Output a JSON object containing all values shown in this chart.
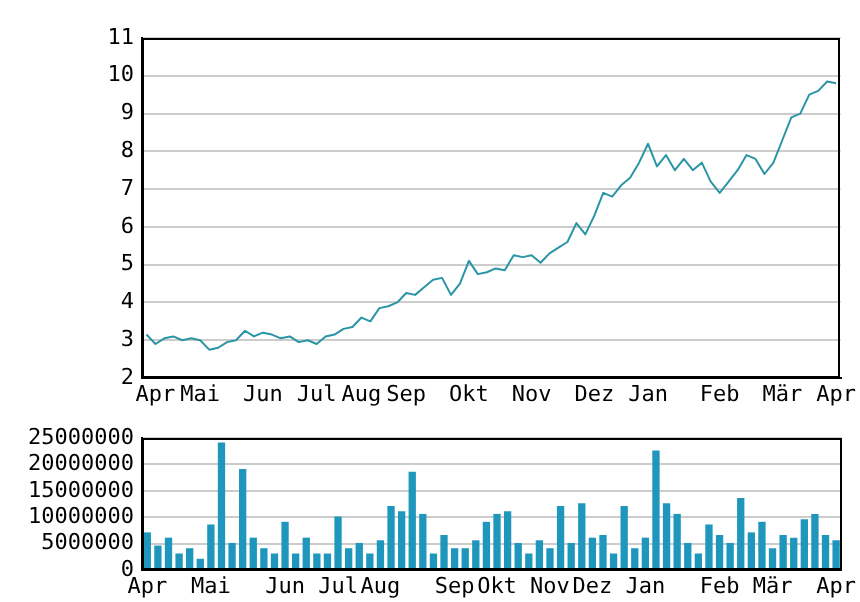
{
  "chart_data": [
    {
      "type": "line",
      "ylim": [
        2,
        11
      ],
      "yticks": [
        2,
        3,
        4,
        5,
        6,
        7,
        8,
        9,
        10,
        11
      ],
      "grid": "y",
      "categories": [
        null,
        "Apr",
        null,
        null,
        null,
        null,
        "Mai",
        null,
        null,
        null,
        null,
        null,
        null,
        "Jun",
        null,
        null,
        null,
        null,
        null,
        "Jul",
        null,
        null,
        null,
        null,
        "Aug",
        null,
        null,
        null,
        null,
        "Sep",
        null,
        null,
        null,
        null,
        null,
        null,
        "Okt",
        null,
        null,
        null,
        null,
        null,
        null,
        "Nov",
        null,
        null,
        null,
        null,
        null,
        null,
        "Dez",
        null,
        null,
        null,
        null,
        null,
        "Jan",
        null,
        null,
        null,
        null,
        null,
        null,
        null,
        "Feb",
        null,
        null,
        null,
        null,
        null,
        null,
        "Mär",
        null,
        null,
        null,
        null,
        null,
        "Apr"
      ],
      "series": [
        {
          "color": "#2a95a5",
          "values": [
            3.15,
            2.9,
            3.05,
            3.1,
            3.0,
            3.05,
            3.0,
            2.75,
            2.8,
            2.95,
            3.0,
            3.25,
            3.1,
            3.2,
            3.15,
            3.05,
            3.1,
            2.95,
            3.0,
            2.9,
            3.1,
            3.15,
            3.3,
            3.35,
            3.6,
            3.5,
            3.85,
            3.9,
            4.0,
            4.25,
            4.2,
            4.4,
            4.6,
            4.65,
            4.2,
            4.5,
            5.1,
            4.75,
            4.8,
            4.9,
            4.85,
            5.25,
            5.2,
            5.25,
            5.05,
            5.3,
            5.45,
            5.6,
            6.1,
            5.8,
            6.3,
            6.9,
            6.8,
            7.1,
            7.3,
            7.7,
            8.2,
            7.6,
            7.9,
            7.5,
            7.8,
            7.5,
            7.7,
            7.2,
            6.9,
            7.2,
            7.5,
            7.9,
            7.8,
            7.4,
            7.7,
            8.3,
            8.9,
            9.0,
            9.5,
            9.6,
            9.85,
            9.8
          ]
        }
      ]
    },
    {
      "type": "bar",
      "ylim": [
        0,
        25000000
      ],
      "yticks": [
        0,
        5000000,
        10000000,
        15000000,
        20000000,
        25000000
      ],
      "grid": "y",
      "categories": [
        "Apr",
        null,
        null,
        null,
        null,
        null,
        "Mai",
        null,
        null,
        null,
        null,
        null,
        null,
        "Jun",
        null,
        null,
        null,
        null,
        "Jul",
        null,
        null,
        null,
        "Aug",
        null,
        null,
        null,
        null,
        null,
        null,
        "Sep",
        null,
        null,
        null,
        "Okt",
        null,
        null,
        null,
        null,
        "Nov",
        null,
        null,
        null,
        "Dez",
        null,
        null,
        null,
        null,
        "Jan",
        null,
        null,
        null,
        null,
        null,
        null,
        "Feb",
        null,
        null,
        null,
        null,
        "Mär",
        null,
        null,
        null,
        null,
        null,
        "Apr"
      ],
      "series": [
        {
          "color": "#1f97bd",
          "values": [
            7000000,
            4500000,
            6000000,
            3000000,
            4000000,
            2000000,
            8500000,
            24000000,
            5000000,
            19000000,
            6000000,
            4000000,
            3000000,
            9000000,
            3000000,
            6000000,
            3000000,
            3000000,
            10000000,
            4000000,
            5000000,
            3000000,
            5500000,
            12000000,
            11000000,
            18500000,
            10500000,
            3000000,
            6500000,
            4000000,
            4000000,
            5500000,
            9000000,
            10500000,
            11000000,
            5000000,
            3000000,
            5500000,
            4000000,
            12000000,
            5000000,
            12500000,
            6000000,
            6500000,
            3000000,
            12000000,
            4000000,
            6000000,
            22500000,
            12500000,
            10500000,
            5000000,
            3000000,
            8500000,
            6500000,
            5000000,
            13500000,
            7000000,
            9000000,
            4000000,
            6500000,
            6000000,
            9500000,
            10500000,
            6500000,
            5500000
          ]
        }
      ]
    }
  ]
}
